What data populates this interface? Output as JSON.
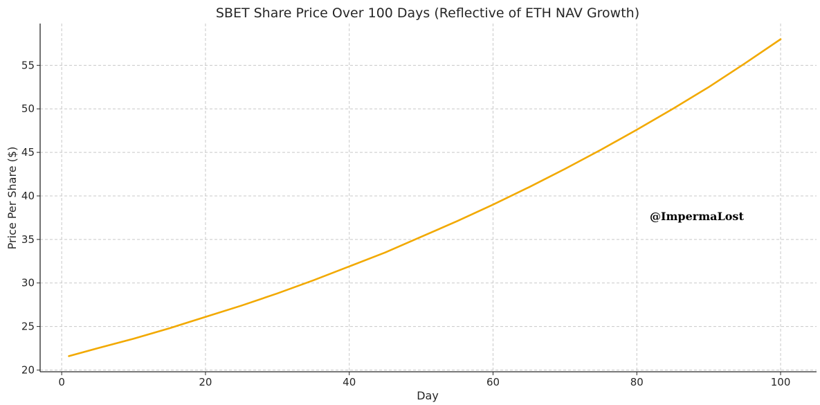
{
  "colors": {
    "series": "#f2a900",
    "grid": "#c8c8c8",
    "axis": "#262626"
  },
  "watermark": "@ImpermaLost",
  "chart_data": {
    "type": "line",
    "title": "SBET Share Price Over 100 Days (Reflective of ETH NAV Growth)",
    "xlabel": "Day",
    "ylabel": "Price Per Share ($)",
    "xlim": [
      -3,
      105
    ],
    "ylim": [
      19.8,
      59.8
    ],
    "x_ticks": [
      0,
      20,
      40,
      60,
      80,
      100
    ],
    "y_ticks": [
      20,
      25,
      30,
      35,
      40,
      45,
      50,
      55
    ],
    "grid": true,
    "series": [
      {
        "x": [
          1,
          5,
          10,
          15,
          20,
          25,
          30,
          35,
          40,
          45,
          50,
          55,
          60,
          65,
          70,
          75,
          80,
          85,
          90,
          95,
          100
        ],
        "y": [
          21.6,
          22.5,
          23.6,
          24.8,
          26.1,
          27.4,
          28.8,
          30.3,
          31.9,
          33.5,
          35.3,
          37.1,
          39.0,
          41.0,
          43.1,
          45.3,
          47.6,
          50.0,
          52.5,
          55.2,
          58.0
        ]
      }
    ]
  }
}
